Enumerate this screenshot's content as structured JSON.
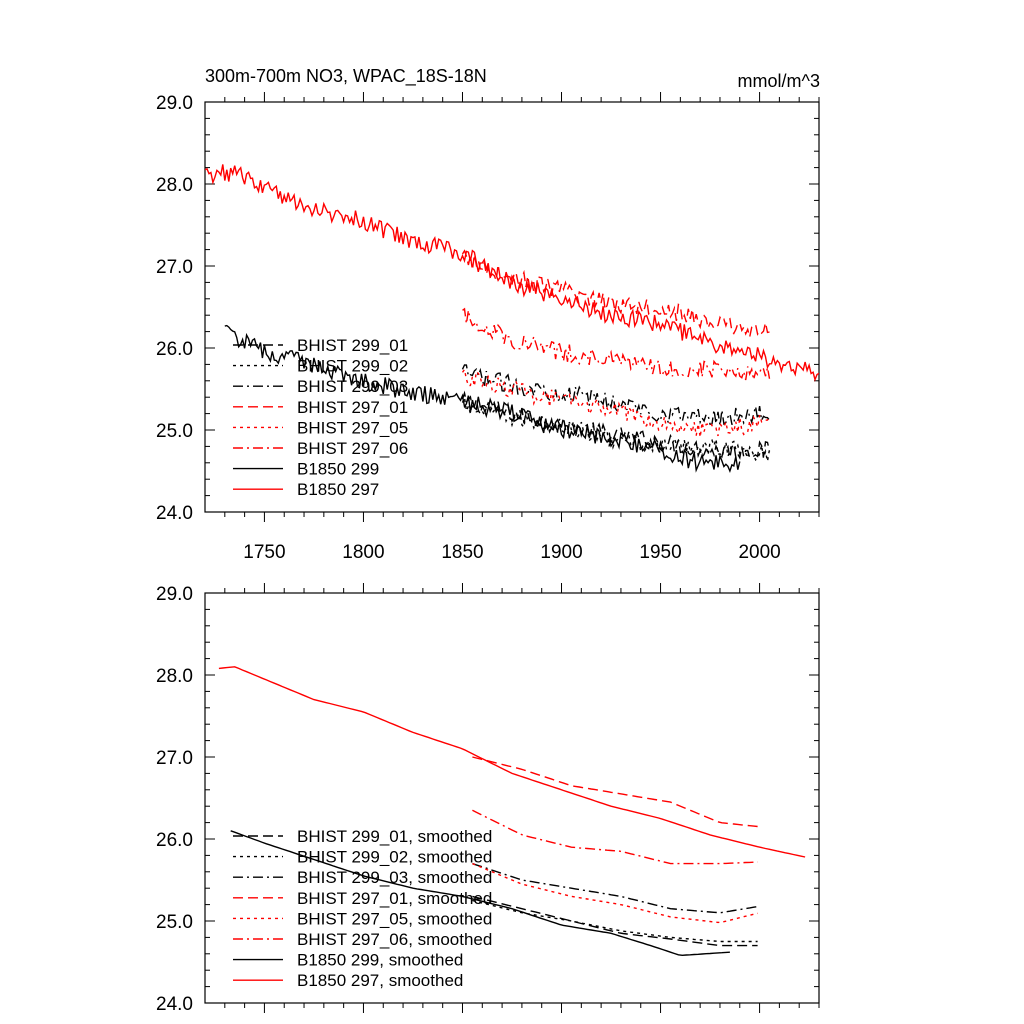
{
  "chart_data": [
    {
      "type": "line",
      "title": "300m-700m NO3, WPAC_18S-18N",
      "units": "mmol/m^3",
      "xlim": [
        1720,
        2030
      ],
      "ylim": [
        24.0,
        29.0
      ],
      "xticks": [
        1750,
        1800,
        1850,
        1900,
        1950,
        2000
      ],
      "xtick_labels": [
        "1750",
        "1800",
        "1850",
        "1900",
        "1950",
        "2000"
      ],
      "yticks": [
        24.0,
        25.0,
        26.0,
        27.0,
        28.0,
        29.0
      ],
      "ytick_labels": [
        "24.0",
        "25.0",
        "26.0",
        "27.0",
        "28.0",
        "29.0"
      ],
      "legend_position": "lower-left",
      "series": [
        {
          "name": "BHIST 299_01",
          "color": "#000000",
          "dash": "dash",
          "x": [
            1850,
            1875,
            1900,
            1925,
            1950,
            1975,
            2005
          ],
          "y": [
            25.35,
            25.2,
            25.05,
            24.95,
            24.85,
            24.75,
            24.75
          ]
        },
        {
          "name": "BHIST 299_02",
          "color": "#000000",
          "dash": "dot",
          "x": [
            1850,
            1875,
            1900,
            1925,
            1950,
            1975,
            2005
          ],
          "y": [
            25.3,
            25.15,
            25.05,
            24.9,
            24.8,
            24.8,
            24.7
          ]
        },
        {
          "name": "BHIST 299_03",
          "color": "#000000",
          "dash": "dashdot",
          "x": [
            1850,
            1875,
            1900,
            1925,
            1950,
            1975,
            2005
          ],
          "y": [
            25.7,
            25.55,
            25.45,
            25.35,
            25.2,
            25.15,
            25.2
          ]
        },
        {
          "name": "BHIST 297_01",
          "color": "#ff0000",
          "dash": "dash",
          "x": [
            1850,
            1875,
            1900,
            1925,
            1950,
            1975,
            2005
          ],
          "y": [
            27.1,
            26.85,
            26.7,
            26.55,
            26.5,
            26.3,
            26.2
          ]
        },
        {
          "name": "BHIST 297_05",
          "color": "#ff0000",
          "dash": "dot",
          "x": [
            1850,
            1875,
            1900,
            1925,
            1950,
            1975,
            2005
          ],
          "y": [
            25.65,
            25.5,
            25.35,
            25.25,
            25.1,
            25.0,
            25.1
          ]
        },
        {
          "name": "BHIST 297_06",
          "color": "#ff0000",
          "dash": "dashdot",
          "x": [
            1850,
            1875,
            1900,
            1925,
            1950,
            1975,
            2005
          ],
          "y": [
            26.4,
            26.1,
            25.95,
            25.85,
            25.75,
            25.75,
            25.7
          ]
        },
        {
          "name": "B1850 299",
          "color": "#000000",
          "dash": "solid",
          "x": [
            1730,
            1750,
            1775,
            1800,
            1825,
            1850,
            1875,
            1900,
            1925,
            1950,
            1970,
            1990
          ],
          "y": [
            26.2,
            25.95,
            25.8,
            25.6,
            25.45,
            25.35,
            25.2,
            25.0,
            24.9,
            24.75,
            24.6,
            24.6
          ]
        },
        {
          "name": "B1850 297",
          "color": "#ff0000",
          "dash": "solid",
          "x": [
            1720,
            1735,
            1750,
            1775,
            1800,
            1825,
            1850,
            1875,
            1900,
            1925,
            1950,
            1975,
            2000,
            2030
          ],
          "y": [
            28.1,
            28.15,
            27.95,
            27.7,
            27.55,
            27.3,
            27.15,
            26.8,
            26.6,
            26.4,
            26.3,
            26.05,
            25.9,
            25.7
          ]
        }
      ]
    },
    {
      "type": "line",
      "title": "",
      "xlim": [
        1720,
        2030
      ],
      "ylim": [
        24.0,
        29.0
      ],
      "yticks": [
        24.0,
        25.0,
        26.0,
        27.0,
        28.0,
        29.0
      ],
      "ytick_labels": [
        "24.0",
        "25.0",
        "26.0",
        "27.0",
        "28.0",
        "29.0"
      ],
      "legend_position": "lower-left",
      "series": [
        {
          "name": "BHIST 299_01, smoothed",
          "color": "#000000",
          "dash": "dash",
          "x": [
            1855,
            1880,
            1905,
            1930,
            1955,
            1980,
            2000
          ],
          "y": [
            25.3,
            25.15,
            25.0,
            24.85,
            24.78,
            24.7,
            24.7
          ]
        },
        {
          "name": "BHIST 299_02, smoothed",
          "color": "#000000",
          "dash": "dot",
          "x": [
            1855,
            1880,
            1905,
            1930,
            1955,
            1980,
            2000
          ],
          "y": [
            25.25,
            25.1,
            25.0,
            24.88,
            24.8,
            24.75,
            24.75
          ]
        },
        {
          "name": "BHIST 299_03, smoothed",
          "color": "#000000",
          "dash": "dashdot",
          "x": [
            1855,
            1880,
            1905,
            1930,
            1955,
            1980,
            2000
          ],
          "y": [
            25.7,
            25.5,
            25.4,
            25.3,
            25.15,
            25.1,
            25.18
          ]
        },
        {
          "name": "BHIST 297_01, smoothed",
          "color": "#ff0000",
          "dash": "dash",
          "x": [
            1855,
            1880,
            1905,
            1930,
            1955,
            1980,
            2000
          ],
          "y": [
            27.0,
            26.85,
            26.65,
            26.55,
            26.45,
            26.2,
            26.15
          ]
        },
        {
          "name": "BHIST 297_05, smoothed",
          "color": "#ff0000",
          "dash": "dot",
          "x": [
            1855,
            1880,
            1905,
            1930,
            1955,
            1980,
            2000
          ],
          "y": [
            25.7,
            25.45,
            25.3,
            25.2,
            25.05,
            24.98,
            25.1
          ]
        },
        {
          "name": "BHIST 297_06, smoothed",
          "color": "#ff0000",
          "dash": "dashdot",
          "x": [
            1855,
            1880,
            1905,
            1930,
            1955,
            1980,
            2000
          ],
          "y": [
            26.35,
            26.05,
            25.9,
            25.85,
            25.7,
            25.7,
            25.72
          ]
        },
        {
          "name": "B1850 299, smoothed",
          "color": "#000000",
          "dash": "solid",
          "x": [
            1733,
            1750,
            1775,
            1800,
            1825,
            1850,
            1875,
            1900,
            1925,
            1945,
            1960,
            1985
          ],
          "y": [
            26.1,
            25.95,
            25.75,
            25.55,
            25.4,
            25.3,
            25.15,
            24.95,
            24.85,
            24.7,
            24.58,
            24.62
          ]
        },
        {
          "name": "B1850 297, smoothed",
          "color": "#ff0000",
          "dash": "solid",
          "x": [
            1727,
            1735,
            1750,
            1775,
            1800,
            1825,
            1850,
            1875,
            1900,
            1925,
            1950,
            1975,
            2000,
            2023
          ],
          "y": [
            28.08,
            28.1,
            27.95,
            27.7,
            27.55,
            27.3,
            27.1,
            26.8,
            26.6,
            26.4,
            26.25,
            26.05,
            25.9,
            25.78
          ]
        }
      ]
    }
  ]
}
